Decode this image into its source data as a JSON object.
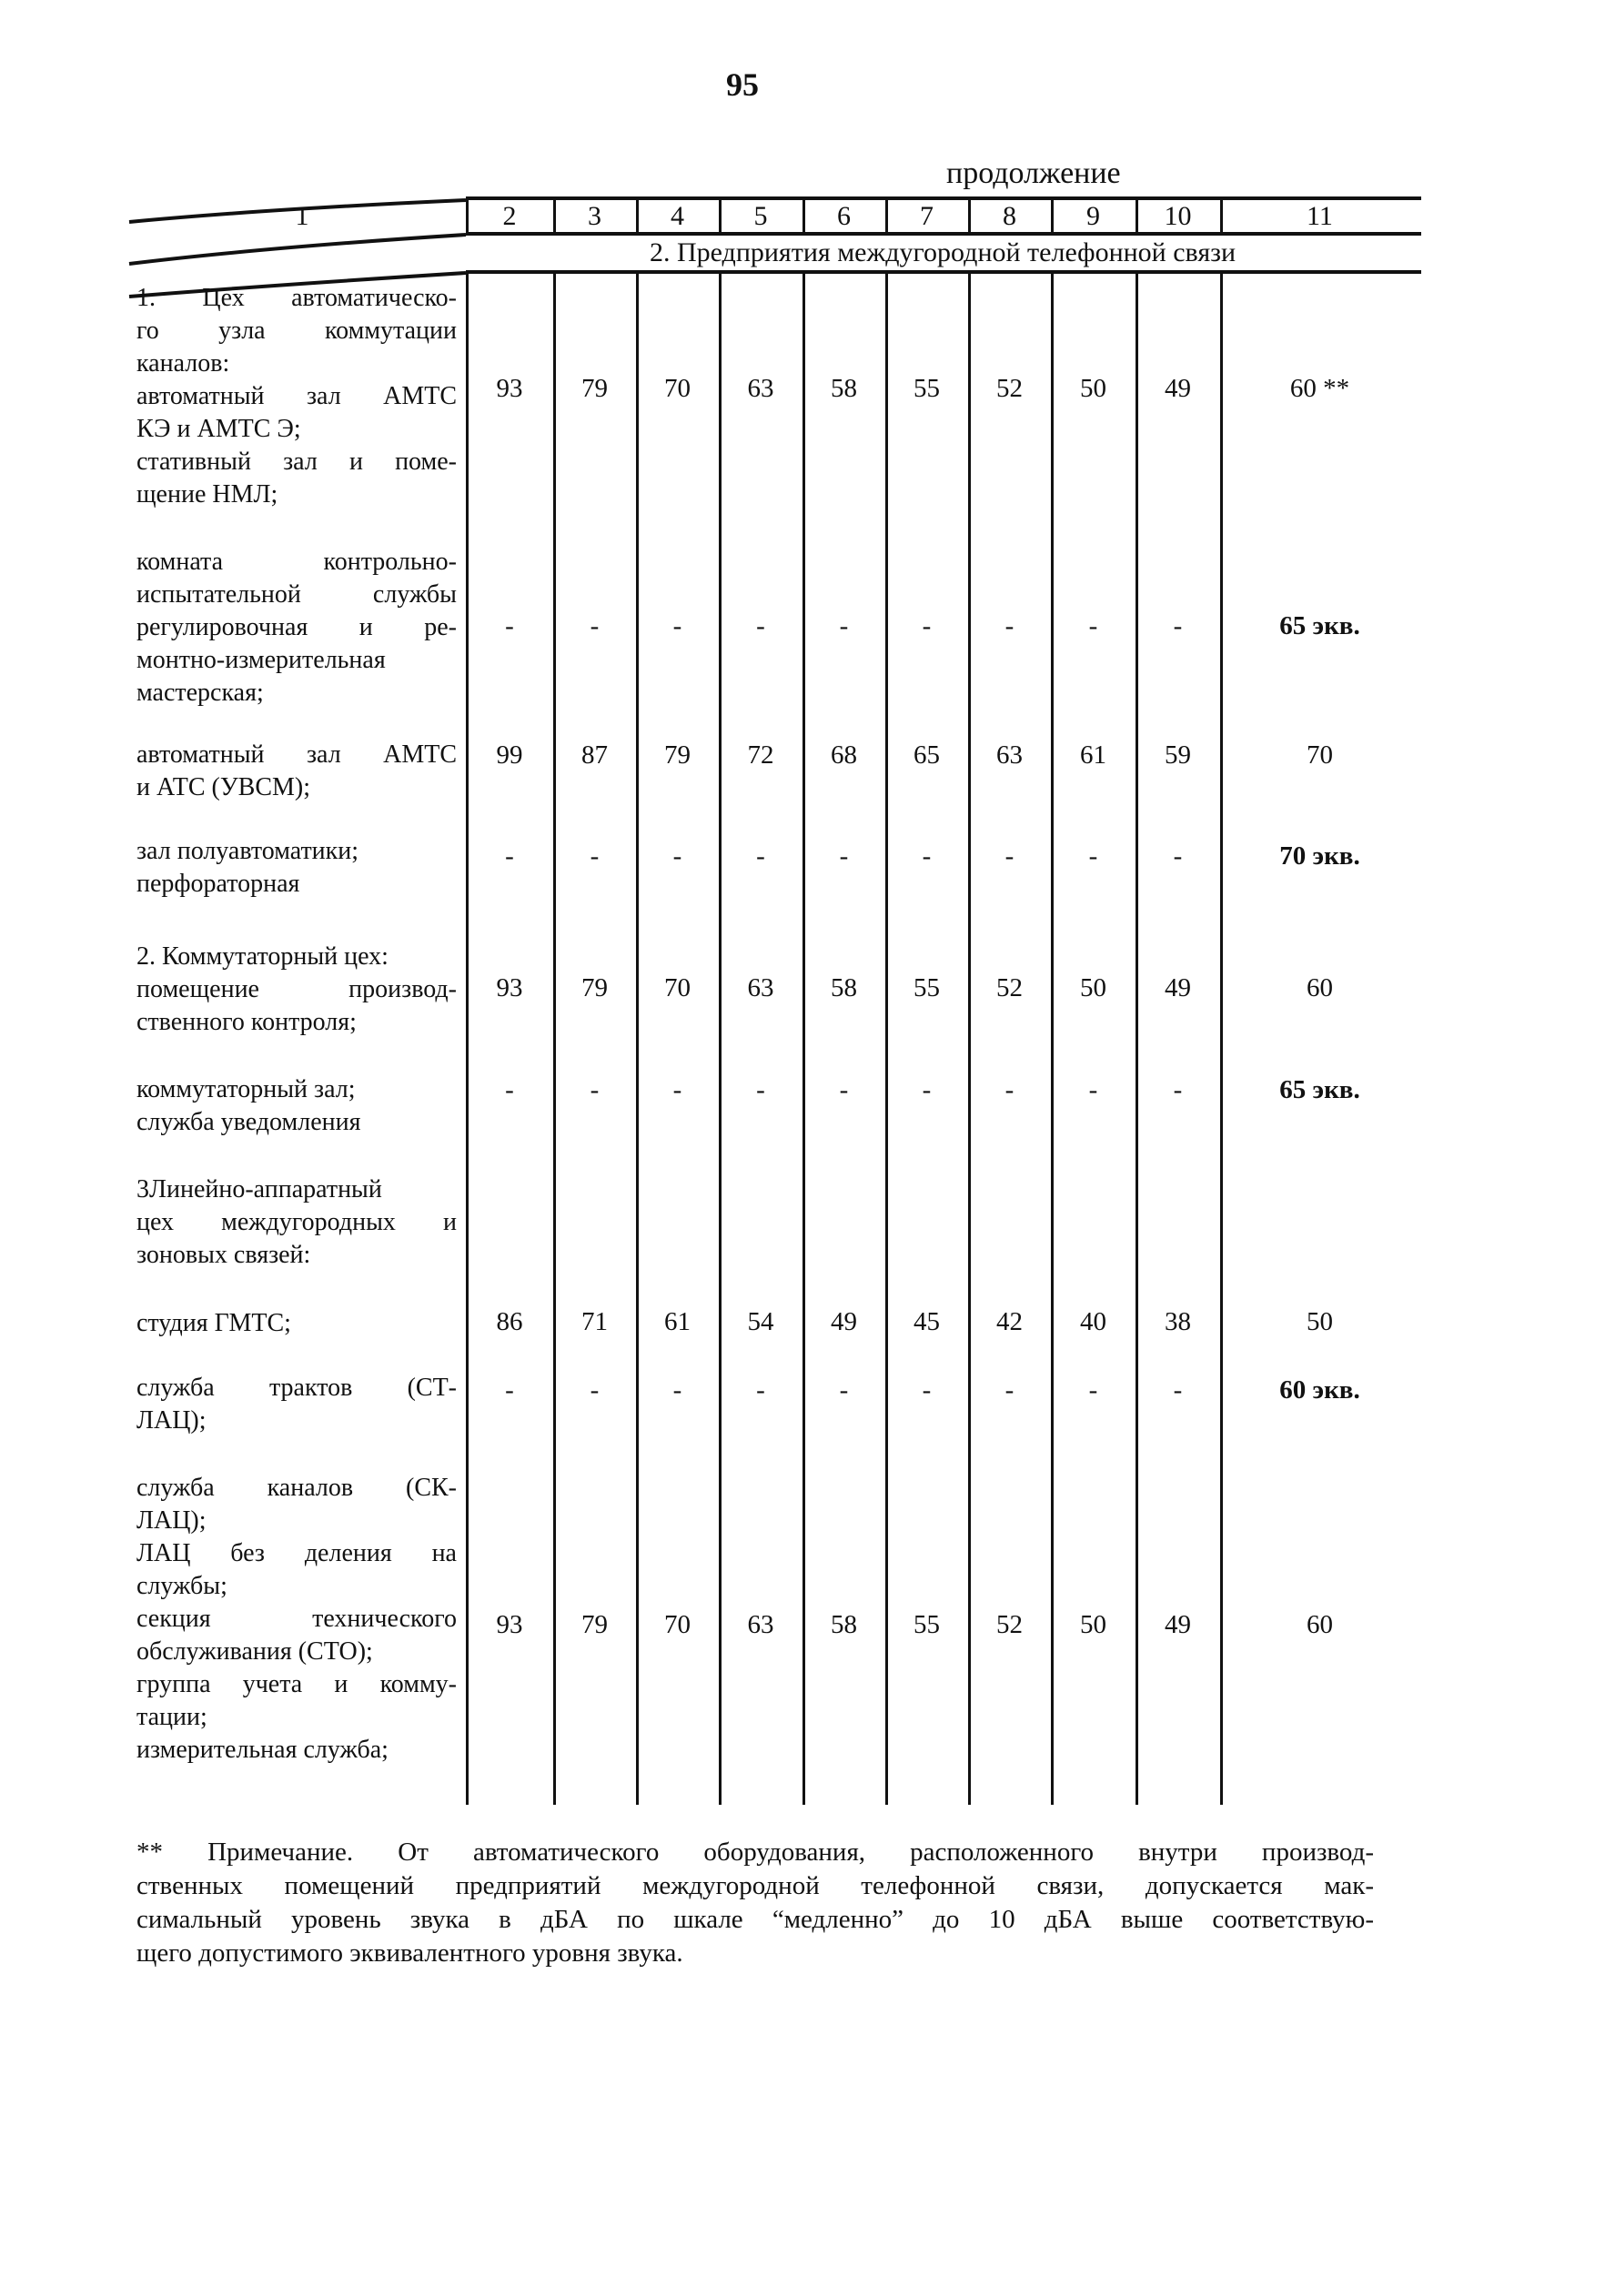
{
  "page_number": "95",
  "continuation": "продолжение",
  "header_columns": [
    "1",
    "2",
    "3",
    "4",
    "5",
    "6",
    "7",
    "8",
    "9",
    "10",
    "11"
  ],
  "section_title": "2. Предприятия междугородной телефонной связи",
  "rows": [
    {
      "lines": [
        "1. Цех автоматическо-",
        "го узла коммутации",
        "каналов:",
        "автоматный зал АМТС",
        "КЭ и АМТС Э;",
        "стативный зал и поме-",
        "щение НМЛ;"
      ],
      "values": [
        "93",
        "79",
        "70",
        "63",
        "58",
        "55",
        "52",
        "50",
        "49",
        "60 **"
      ]
    },
    {
      "lines": [
        "комната контрольно-",
        "испытательной службы",
        "регулировочная и ре-",
        "монтно-измерительная",
        "мастерская;"
      ],
      "values": [
        "-",
        "-",
        "-",
        "-",
        "-",
        "-",
        "-",
        "-",
        "-",
        "65 экв."
      ]
    },
    {
      "lines": [
        "автоматный зал АМТС",
        "и АТС (УВСМ);"
      ],
      "values": [
        "99",
        "87",
        "79",
        "72",
        "68",
        "65",
        "63",
        "61",
        "59",
        "70"
      ]
    },
    {
      "lines": [
        "зал полуавтоматики;",
        "перфораторная"
      ],
      "values": [
        "-",
        "-",
        "-",
        "-",
        "-",
        "-",
        "-",
        "-",
        "-",
        "70 экв."
      ]
    },
    {
      "lines": [
        "2. Коммутаторный цех:",
        "помещение производ-",
        "ственного контроля;"
      ],
      "values": [
        "93",
        "79",
        "70",
        "63",
        "58",
        "55",
        "52",
        "50",
        "49",
        "60"
      ]
    },
    {
      "lines": [
        "коммутаторный зал;",
        "служба уведомления"
      ],
      "values": [
        "-",
        "-",
        "-",
        "-",
        "-",
        "-",
        "-",
        "-",
        "-",
        "65 экв."
      ]
    },
    {
      "lines": [
        "3Линейно-аппаратный",
        "цех междугородных и",
        "зоновых связей:"
      ],
      "values": []
    },
    {
      "lines": [
        "студия ГМТС;"
      ],
      "values": [
        "86",
        "71",
        "61",
        "54",
        "49",
        "45",
        "42",
        "40",
        "38",
        "50"
      ]
    },
    {
      "lines": [
        "служба трактов (СТ-",
        "ЛАЦ);"
      ],
      "values": [
        "-",
        "-",
        "-",
        "-",
        "-",
        "-",
        "-",
        "-",
        "-",
        "60 экв."
      ]
    },
    {
      "lines": [
        "служба каналов (СК-",
        "ЛАЦ);",
        "ЛАЦ без деления на",
        "службы;",
        "секция технического",
        "обслуживания (СТО);",
        "группа учета и комму-",
        "тации;",
        "измерительная служба;"
      ],
      "values": [
        "93",
        "79",
        "70",
        "63",
        "58",
        "55",
        "52",
        "50",
        "49",
        "60"
      ]
    }
  ],
  "note_lines": [
    "** Примечание. От автоматического оборудования, расположенного внутри производ-",
    "ственных помещений предприятий междугородной телефонной связи, допускается мак-",
    "симальный уровень звука в дБА по шкале “медленно” до 10 дБА выше соответствую-",
    "щего допустимого эквивалентного уровня звука."
  ]
}
